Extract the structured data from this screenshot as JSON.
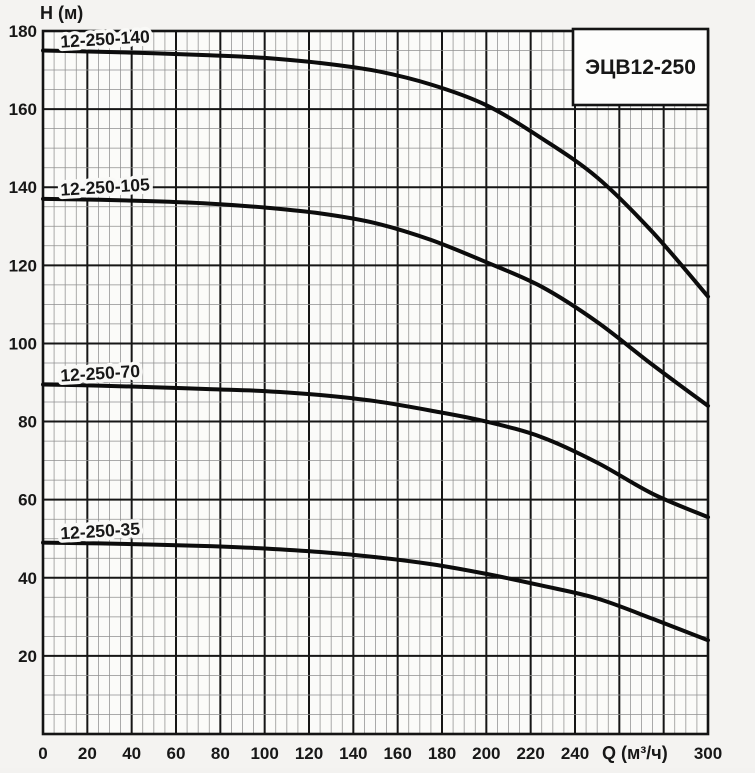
{
  "colors": {
    "paper": "#f4f3f1",
    "plot_fill": "#fbfbf9",
    "grid_minor": "#8f8f8f",
    "grid_major": "#161616",
    "border": "#141414",
    "curve": "#0c0c0c",
    "label_halo": "#f9f9f7",
    "box_fill": "#fdfdfc"
  },
  "chart_data": {
    "type": "line",
    "title": "ЭЦВ12-250",
    "xlabel": "Q (м³/ч)",
    "ylabel": "H (м)",
    "xlim": [
      0,
      300
    ],
    "ylim": [
      0,
      180
    ],
    "grid": {
      "on": true,
      "minor_step": 5,
      "major_step": 20
    },
    "x_tick_values": [
      0,
      20,
      40,
      60,
      80,
      100,
      120,
      140,
      160,
      180,
      200,
      220,
      240,
      300
    ],
    "x_tick_labels": [
      "0",
      "20",
      "40",
      "60",
      "80",
      "100",
      "120",
      "140",
      "160",
      "180",
      "200",
      "220",
      "240",
      "300"
    ],
    "x_axis_label_at": 267,
    "y_tick_values": [
      20,
      40,
      60,
      80,
      100,
      120,
      140,
      160,
      180
    ],
    "y_tick_labels": [
      "20",
      "40",
      "60",
      "80",
      "100",
      "120",
      "140",
      "160",
      "180"
    ],
    "legend_position": "inline-curve-labels",
    "series": [
      {
        "name": "12-250-140",
        "label_at_x": 8,
        "points": [
          [
            0,
            175
          ],
          [
            25,
            174.7
          ],
          [
            50,
            174.3
          ],
          [
            75,
            173.8
          ],
          [
            100,
            173.1
          ],
          [
            125,
            171.8
          ],
          [
            150,
            169.8
          ],
          [
            175,
            166.3
          ],
          [
            200,
            161
          ],
          [
            225,
            152.5
          ],
          [
            250,
            142.5
          ],
          [
            275,
            128.5
          ],
          [
            300,
            112
          ]
        ]
      },
      {
        "name": "12-250-105",
        "label_at_x": 8,
        "points": [
          [
            0,
            137
          ],
          [
            25,
            136.8
          ],
          [
            50,
            136.4
          ],
          [
            75,
            135.8
          ],
          [
            100,
            134.8
          ],
          [
            125,
            133.3
          ],
          [
            150,
            130.8
          ],
          [
            175,
            126.5
          ],
          [
            200,
            120.8
          ],
          [
            225,
            114.5
          ],
          [
            250,
            105.5
          ],
          [
            275,
            94.5
          ],
          [
            300,
            84
          ]
        ]
      },
      {
        "name": "12-250-70",
        "label_at_x": 8,
        "points": [
          [
            0,
            89.5
          ],
          [
            25,
            89.2
          ],
          [
            50,
            88.8
          ],
          [
            75,
            88.3
          ],
          [
            100,
            87.8
          ],
          [
            125,
            86.8
          ],
          [
            150,
            85.2
          ],
          [
            175,
            82.8
          ],
          [
            200,
            80
          ],
          [
            225,
            76
          ],
          [
            250,
            69.5
          ],
          [
            275,
            61.5
          ],
          [
            300,
            55.5
          ]
        ]
      },
      {
        "name": "12-250-35",
        "label_at_x": 8,
        "points": [
          [
            0,
            49
          ],
          [
            25,
            48.8
          ],
          [
            50,
            48.5
          ],
          [
            75,
            48.1
          ],
          [
            100,
            47.5
          ],
          [
            125,
            46.6
          ],
          [
            150,
            45.3
          ],
          [
            175,
            43.5
          ],
          [
            200,
            41
          ],
          [
            225,
            38
          ],
          [
            250,
            34.7
          ],
          [
            275,
            29.5
          ],
          [
            300,
            24
          ]
        ]
      }
    ]
  }
}
